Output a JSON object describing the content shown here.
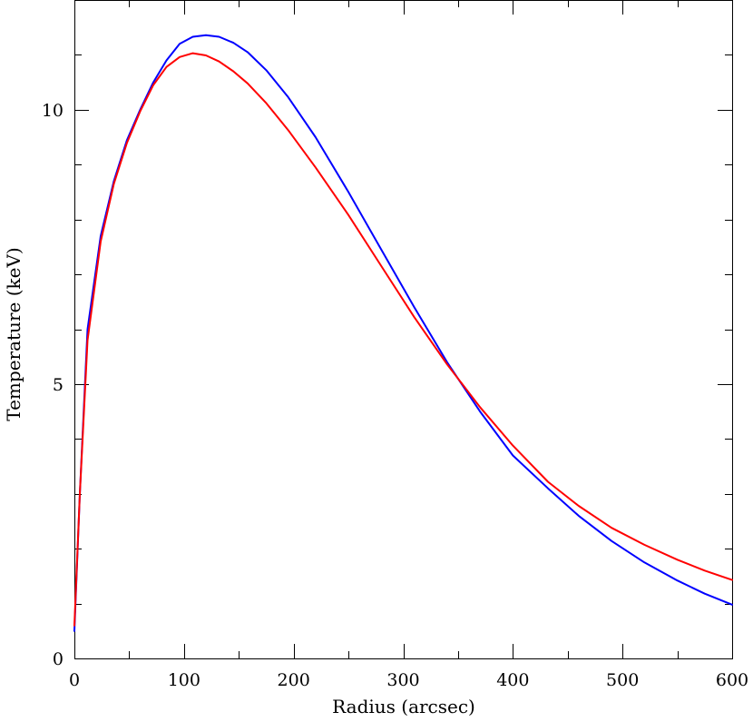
{
  "chart_data": {
    "type": "line",
    "title": "",
    "xlabel": "Radius (arcsec)",
    "ylabel": "Temperature (keV)",
    "xlim": [
      0,
      600
    ],
    "ylim": [
      0,
      12
    ],
    "grid": false,
    "legend": "none",
    "x_major_ticks": [
      0,
      100,
      200,
      300,
      400,
      500,
      600
    ],
    "x_tick_labels": [
      "0",
      "100",
      "200",
      "300",
      "400",
      "500",
      "600"
    ],
    "x_minor_ticks": [
      50,
      150,
      250,
      350,
      450,
      550
    ],
    "y_major_ticks": [
      0,
      5,
      10
    ],
    "y_tick_labels": [
      "0",
      "5",
      "10"
    ],
    "y_minor_ticks": [
      1,
      2,
      3,
      4,
      6,
      7,
      8,
      9,
      11
    ],
    "series": [
      {
        "color": "#0000ff",
        "x": [
          0,
          5,
          12,
          24,
          36,
          48,
          60,
          72,
          84,
          96,
          108,
          120,
          132,
          145,
          158,
          175,
          195,
          220,
          250,
          280,
          310,
          340,
          370,
          400,
          432,
          460,
          490,
          520,
          550,
          575,
          600
        ],
        "y": [
          0.5,
          3.0,
          6.0,
          7.7,
          8.7,
          9.45,
          10.0,
          10.5,
          10.9,
          11.2,
          11.33,
          11.36,
          11.33,
          11.22,
          11.05,
          10.72,
          10.23,
          9.5,
          8.5,
          7.45,
          6.4,
          5.4,
          4.5,
          3.7,
          3.1,
          2.6,
          2.14,
          1.75,
          1.42,
          1.18,
          0.98
        ]
      },
      {
        "color": "#ff0000",
        "x": [
          0,
          5,
          12,
          24,
          36,
          48,
          60,
          72,
          84,
          96,
          108,
          120,
          132,
          145,
          158,
          175,
          195,
          220,
          250,
          280,
          310,
          340,
          370,
          400,
          432,
          460,
          490,
          520,
          550,
          575,
          600
        ],
        "y": [
          0.6,
          3.0,
          5.8,
          7.6,
          8.65,
          9.4,
          9.97,
          10.45,
          10.78,
          10.96,
          11.03,
          10.99,
          10.88,
          10.7,
          10.48,
          10.12,
          9.63,
          8.95,
          8.08,
          7.15,
          6.22,
          5.36,
          4.58,
          3.88,
          3.22,
          2.78,
          2.38,
          2.07,
          1.8,
          1.6,
          1.43
        ]
      }
    ]
  }
}
